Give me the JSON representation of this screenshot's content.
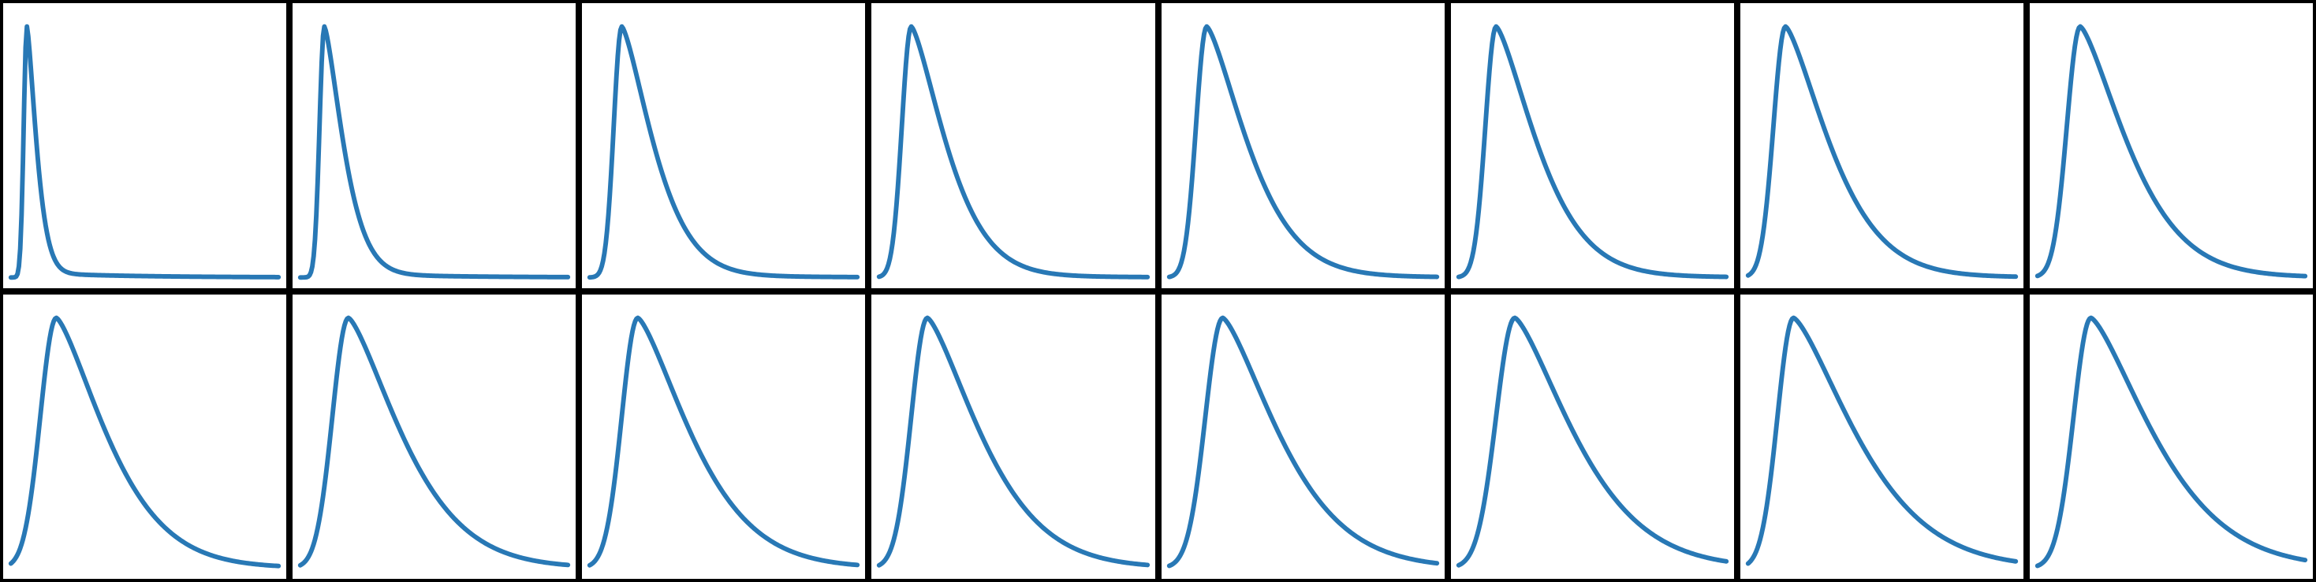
{
  "chart_data": {
    "type": "line",
    "layout": {
      "rows": 2,
      "cols": 8
    },
    "axes_shown": false,
    "grid": false,
    "colors": {
      "line": "#2878b5",
      "frame": "#000000",
      "background": "#ffffff"
    },
    "panels": [
      {
        "row": 0,
        "col": 0,
        "peak": 0.06,
        "rise": 0.012,
        "decay": 0.03,
        "skew": 1.0,
        "ylim": [
          0,
          1.05
        ]
      },
      {
        "row": 0,
        "col": 1,
        "peak": 0.09,
        "rise": 0.018,
        "decay": 0.06,
        "skew": 1.0,
        "ylim": [
          0,
          1.05
        ]
      },
      {
        "row": 0,
        "col": 2,
        "peak": 0.12,
        "rise": 0.03,
        "decay": 0.1,
        "skew": 1.0,
        "ylim": [
          0,
          1.05
        ]
      },
      {
        "row": 0,
        "col": 3,
        "peak": 0.12,
        "rise": 0.035,
        "decay": 0.11,
        "skew": 1.0,
        "ylim": [
          0,
          1.05
        ]
      },
      {
        "row": 0,
        "col": 4,
        "peak": 0.14,
        "rise": 0.04,
        "decay": 0.13,
        "skew": 1.0,
        "ylim": [
          0,
          1.05
        ]
      },
      {
        "row": 0,
        "col": 5,
        "peak": 0.14,
        "rise": 0.04,
        "decay": 0.13,
        "skew": 1.0,
        "ylim": [
          0,
          1.05
        ]
      },
      {
        "row": 0,
        "col": 6,
        "peak": 0.14,
        "rise": 0.045,
        "decay": 0.14,
        "skew": 1.0,
        "ylim": [
          0,
          1.05
        ]
      },
      {
        "row": 0,
        "col": 7,
        "peak": 0.16,
        "rise": 0.05,
        "decay": 0.15,
        "skew": 1.0,
        "ylim": [
          0,
          1.05
        ]
      },
      {
        "row": 1,
        "col": 0,
        "peak": 0.17,
        "rise": 0.06,
        "decay": 0.16,
        "skew": 1.0,
        "ylim": [
          0,
          1.05
        ]
      },
      {
        "row": 1,
        "col": 1,
        "peak": 0.18,
        "rise": 0.06,
        "decay": 0.17,
        "skew": 1.0,
        "ylim": [
          0,
          1.05
        ]
      },
      {
        "row": 1,
        "col": 2,
        "peak": 0.18,
        "rise": 0.06,
        "decay": 0.17,
        "skew": 1.0,
        "ylim": [
          0,
          1.05
        ]
      },
      {
        "row": 1,
        "col": 3,
        "peak": 0.18,
        "rise": 0.06,
        "decay": 0.17,
        "skew": 1.0,
        "ylim": [
          0,
          1.05
        ]
      },
      {
        "row": 1,
        "col": 4,
        "peak": 0.2,
        "rise": 0.065,
        "decay": 0.18,
        "skew": 1.0,
        "ylim": [
          0,
          1.05
        ]
      },
      {
        "row": 1,
        "col": 5,
        "peak": 0.21,
        "rise": 0.07,
        "decay": 0.19,
        "skew": 1.0,
        "ylim": [
          0,
          1.05
        ]
      },
      {
        "row": 1,
        "col": 6,
        "peak": 0.17,
        "rise": 0.06,
        "decay": 0.2,
        "skew": 1.0,
        "ylim": [
          0,
          1.05
        ]
      },
      {
        "row": 1,
        "col": 7,
        "peak": 0.2,
        "rise": 0.065,
        "decay": 0.2,
        "skew": 1.0,
        "ylim": [
          0,
          1.05
        ]
      }
    ]
  }
}
